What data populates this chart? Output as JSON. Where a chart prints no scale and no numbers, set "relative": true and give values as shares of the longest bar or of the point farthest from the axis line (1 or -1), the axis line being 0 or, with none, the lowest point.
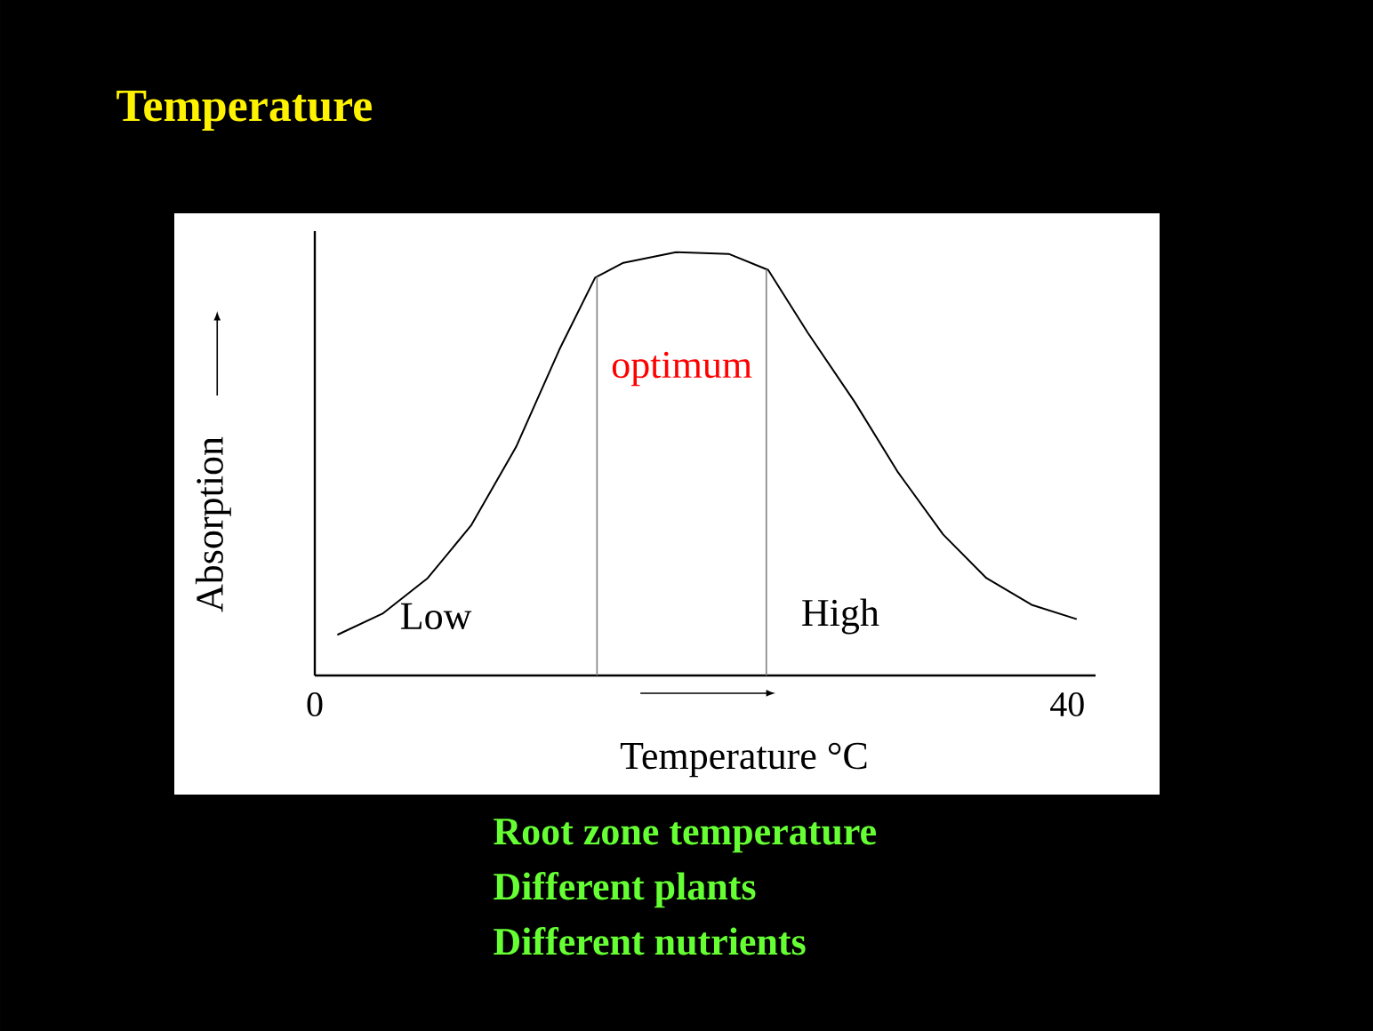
{
  "chart_data": {
    "type": "line",
    "title": "Temperature",
    "xlabel": "Temperature  °C",
    "ylabel": "Absorption",
    "relative": true,
    "x": [
      1.2,
      3.6,
      6.0,
      8.3,
      10.7,
      13.0,
      14.9,
      16.4,
      19.2,
      22.0,
      24.1,
      26.2,
      28.7,
      31.0,
      33.4,
      35.7,
      38.1,
      40.5
    ],
    "series": [
      {
        "color": "#000000",
        "values": [
          0.096,
          0.146,
          0.23,
          0.354,
          0.54,
          0.77,
          0.94,
          0.975,
          1.0,
          0.996,
          0.958,
          0.81,
          0.646,
          0.48,
          0.333,
          0.23,
          0.167,
          0.133
        ]
      }
    ],
    "xlim": [
      0,
      41.5
    ],
    "xticks": [
      0,
      40
    ],
    "tick_labels": "x",
    "marker": "none",
    "line_style": "solid",
    "ref_lines": [
      {
        "axis": "x",
        "value": 15,
        "color": "#808080"
      },
      {
        "axis": "x",
        "value": 24,
        "color": "#808080"
      }
    ],
    "annotations": [
      "Low",
      "High",
      "optimum",
      "Root zone temperature",
      "Different plants",
      "Different nutrients"
    ]
  }
}
